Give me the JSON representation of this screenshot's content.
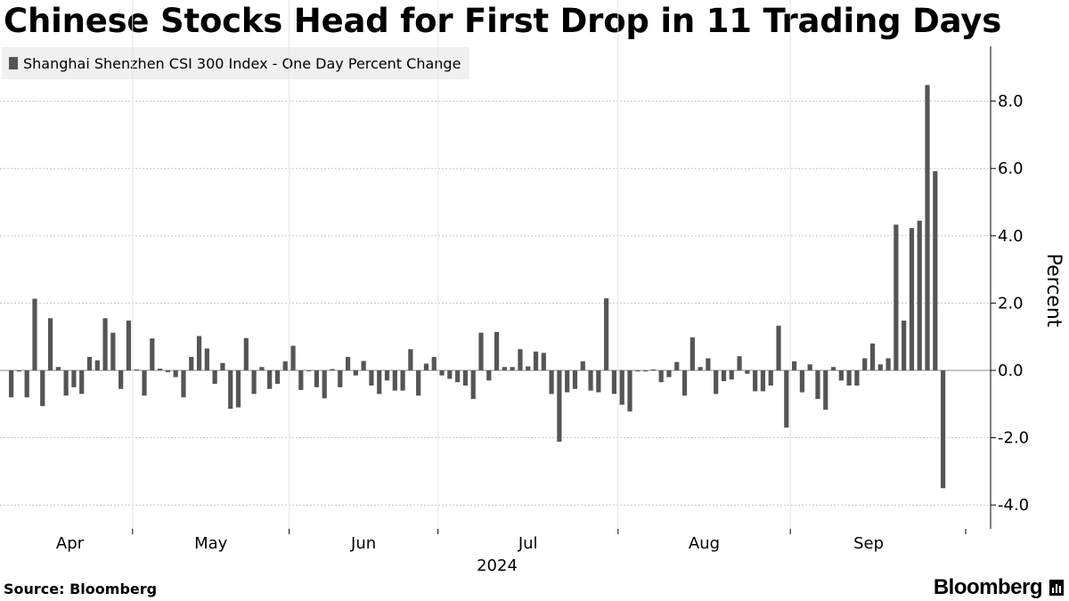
{
  "title": "Chinese Stocks Head for First Drop in 11 Trading Days",
  "legend": {
    "label": "Shanghai Shenzhen CSI 300 Index - One Day Percent Change",
    "color": "#555555"
  },
  "source": "Source: Bloomberg",
  "brand": "Bloomberg",
  "colors": {
    "bar": "#555555",
    "grid": "#c8c8c8",
    "axis": "#000000"
  },
  "chart_data": {
    "type": "bar",
    "title": "Chinese Stocks Head for First Drop in 11 Trading Days",
    "ylabel": "Percent",
    "year_label": "2024",
    "ylim": [
      -4.7,
      9.5
    ],
    "yticks": [
      8.0,
      6.0,
      4.0,
      2.0,
      0.0,
      -2.0,
      -4.0
    ],
    "ytick_labels": [
      "8.0",
      "6.0",
      "4.0",
      "2.0",
      "0.0",
      "-2.0",
      "-4.0"
    ],
    "grid": true,
    "legend_position": "top-left",
    "months": [
      {
        "label": "Apr",
        "start_index": 0
      },
      {
        "label": "May",
        "start_index": 16
      },
      {
        "label": "Jun",
        "start_index": 36
      },
      {
        "label": "Jul",
        "start_index": 55
      },
      {
        "label": "Aug",
        "start_index": 78
      },
      {
        "label": "Sep",
        "start_index": 100
      }
    ],
    "series": [
      {
        "name": "Shanghai Shenzhen CSI 300 Index - One Day Percent Change",
        "values": [
          -0.8,
          -0.03,
          -0.8,
          2.13,
          -1.06,
          1.55,
          0.1,
          -0.75,
          -0.5,
          -0.7,
          0.4,
          0.3,
          1.55,
          1.12,
          -0.55,
          1.48,
          0.03,
          -0.75,
          0.95,
          0.05,
          -0.05,
          -0.2,
          -0.8,
          0.4,
          1.02,
          0.65,
          -0.4,
          0.22,
          -1.14,
          -1.1,
          0.96,
          -0.7,
          0.1,
          -0.55,
          -0.4,
          0.27,
          0.73,
          -0.58,
          0.0,
          -0.5,
          -0.83,
          0.04,
          -0.5,
          0.4,
          -0.15,
          0.28,
          -0.45,
          -0.7,
          -0.3,
          -0.6,
          -0.6,
          0.63,
          -0.75,
          0.2,
          0.4,
          -0.15,
          -0.25,
          -0.35,
          -0.45,
          -0.85,
          1.12,
          -0.3,
          1.14,
          0.1,
          0.1,
          0.63,
          0.12,
          0.56,
          0.52,
          -0.7,
          -2.12,
          -0.65,
          -0.55,
          0.27,
          -0.6,
          -0.65,
          2.14,
          -0.7,
          -1.02,
          -1.22,
          -0.03,
          -0.03,
          0.03,
          -0.35,
          -0.2,
          0.25,
          -0.75,
          0.98,
          0.1,
          0.36,
          -0.7,
          -0.32,
          -0.27,
          0.42,
          -0.1,
          -0.62,
          -0.62,
          -0.45,
          1.33,
          -1.7,
          0.27,
          -0.65,
          0.18,
          -0.85,
          -1.17,
          0.1,
          -0.3,
          -0.45,
          -0.45,
          0.36,
          0.8,
          0.18,
          0.36,
          4.33,
          1.48,
          4.23,
          4.45,
          8.48,
          5.92,
          -3.5
        ]
      }
    ]
  }
}
